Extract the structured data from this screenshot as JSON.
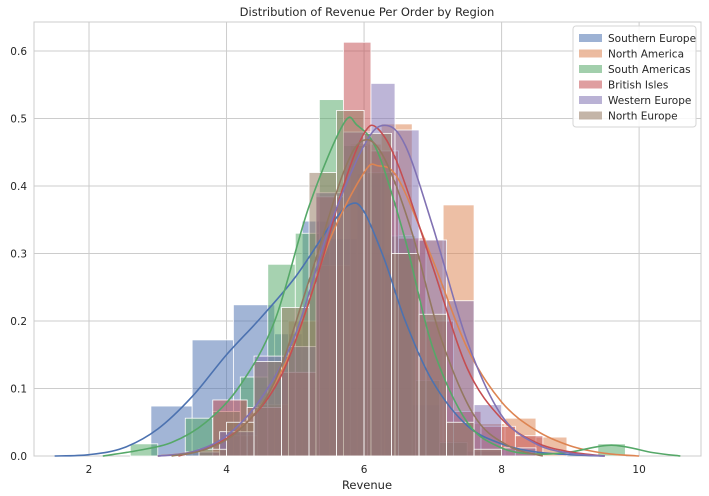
{
  "chart_data": {
    "type": "bar",
    "subtype": "overlaid-histogram-with-kde",
    "title": "Distribution of Revenue Per Order by Region",
    "xlabel": "Revenue",
    "ylabel": "",
    "xlim": [
      1.2,
      10.9
    ],
    "ylim": [
      0,
      0.643
    ],
    "xticks": [
      2,
      4,
      6,
      8,
      10
    ],
    "yticks": [
      0.0,
      0.1,
      0.2,
      0.3,
      0.4,
      0.5,
      0.6
    ],
    "grid": true,
    "legend_position": "top-right",
    "series": [
      {
        "name": "Southern Europe",
        "color": "#4c72b0",
        "bins": [
          [
            2.9,
            3.5,
            0.074
          ],
          [
            3.5,
            4.1,
            0.172
          ],
          [
            4.1,
            4.7,
            0.224
          ],
          [
            4.7,
            5.1,
            0.181
          ],
          [
            5.1,
            5.5,
            0.348
          ],
          [
            5.5,
            5.9,
            0.322
          ],
          [
            5.9,
            6.3,
            0.418
          ],
          [
            6.3,
            6.7,
            0.299
          ],
          [
            6.7,
            7.1,
            0.076
          ],
          [
            7.1,
            7.5,
            0.022
          ],
          [
            7.5,
            8.0,
            0.007
          ],
          [
            8.0,
            8.5,
            0.0
          ]
        ],
        "kde": [
          [
            1.5,
            0.0
          ],
          [
            2.0,
            0.002
          ],
          [
            2.5,
            0.012
          ],
          [
            3.0,
            0.04
          ],
          [
            3.5,
            0.088
          ],
          [
            4.0,
            0.15
          ],
          [
            4.5,
            0.205
          ],
          [
            5.0,
            0.265
          ],
          [
            5.5,
            0.34
          ],
          [
            5.8,
            0.373
          ],
          [
            6.0,
            0.362
          ],
          [
            6.3,
            0.29
          ],
          [
            6.6,
            0.2
          ],
          [
            7.0,
            0.11
          ],
          [
            7.5,
            0.045
          ],
          [
            8.0,
            0.018
          ],
          [
            8.5,
            0.006
          ],
          [
            9.0,
            0.002
          ],
          [
            9.5,
            0.0
          ]
        ]
      },
      {
        "name": "North America",
        "color": "#dd8452",
        "bins": [
          [
            3.6,
            4.0,
            0.008
          ],
          [
            4.0,
            4.45,
            0.03
          ],
          [
            4.45,
            4.9,
            0.076
          ],
          [
            4.9,
            5.35,
            0.2
          ],
          [
            5.35,
            5.8,
            0.282
          ],
          [
            5.8,
            6.25,
            0.462
          ],
          [
            6.25,
            6.7,
            0.492
          ],
          [
            6.7,
            7.15,
            0.32
          ],
          [
            7.15,
            7.6,
            0.372
          ],
          [
            7.6,
            8.05,
            0.048
          ],
          [
            8.05,
            8.5,
            0.056
          ],
          [
            8.5,
            8.95,
            0.028
          ]
        ],
        "kde": [
          [
            3.0,
            0.0
          ],
          [
            3.5,
            0.006
          ],
          [
            4.0,
            0.025
          ],
          [
            4.5,
            0.075
          ],
          [
            5.0,
            0.17
          ],
          [
            5.5,
            0.32
          ],
          [
            6.0,
            0.42
          ],
          [
            6.2,
            0.43
          ],
          [
            6.5,
            0.41
          ],
          [
            7.0,
            0.29
          ],
          [
            7.5,
            0.16
          ],
          [
            8.0,
            0.08
          ],
          [
            8.5,
            0.038
          ],
          [
            9.0,
            0.015
          ],
          [
            9.5,
            0.004
          ],
          [
            10.0,
            0.0
          ]
        ]
      },
      {
        "name": "South Americas",
        "color": "#55a868",
        "bins": [
          [
            2.6,
            3.0,
            0.018
          ],
          [
            3.0,
            3.4,
            0.0
          ],
          [
            3.4,
            3.8,
            0.056
          ],
          [
            3.8,
            4.2,
            0.066
          ],
          [
            4.2,
            4.6,
            0.117
          ],
          [
            4.6,
            5.0,
            0.284
          ],
          [
            5.0,
            5.35,
            0.33
          ],
          [
            5.35,
            5.7,
            0.528
          ],
          [
            5.7,
            6.05,
            0.46
          ],
          [
            6.05,
            6.4,
            0.42
          ],
          [
            6.4,
            6.75,
            0.326
          ],
          [
            6.75,
            7.1,
            0.112
          ],
          [
            7.1,
            7.5,
            0.02
          ],
          [
            9.4,
            9.8,
            0.018
          ]
        ],
        "kde": [
          [
            2.2,
            0.0
          ],
          [
            2.7,
            0.008
          ],
          [
            3.2,
            0.02
          ],
          [
            3.7,
            0.05
          ],
          [
            4.2,
            0.105
          ],
          [
            4.7,
            0.2
          ],
          [
            5.2,
            0.37
          ],
          [
            5.7,
            0.492
          ],
          [
            5.9,
            0.49
          ],
          [
            6.2,
            0.45
          ],
          [
            6.6,
            0.32
          ],
          [
            7.0,
            0.16
          ],
          [
            7.5,
            0.05
          ],
          [
            8.0,
            0.012
          ],
          [
            8.5,
            0.003
          ],
          [
            9.0,
            0.006
          ],
          [
            9.6,
            0.016
          ],
          [
            10.2,
            0.005
          ],
          [
            10.6,
            0.0
          ]
        ]
      },
      {
        "name": "British Isles",
        "color": "#c44e52",
        "bins": [
          [
            3.8,
            4.3,
            0.083
          ],
          [
            4.3,
            4.8,
            0.072
          ],
          [
            4.8,
            5.3,
            0.124
          ],
          [
            5.3,
            5.7,
            0.384
          ],
          [
            5.7,
            6.1,
            0.613
          ],
          [
            6.1,
            6.5,
            0.452
          ],
          [
            6.5,
            6.9,
            0.323
          ],
          [
            6.9,
            7.3,
            0.2
          ],
          [
            7.3,
            7.7,
            0.066
          ],
          [
            7.7,
            8.2,
            0.044
          ],
          [
            8.2,
            8.6,
            0.03
          ]
        ],
        "kde": [
          [
            3.3,
            0.0
          ],
          [
            3.8,
            0.015
          ],
          [
            4.3,
            0.05
          ],
          [
            4.8,
            0.12
          ],
          [
            5.3,
            0.26
          ],
          [
            5.7,
            0.4
          ],
          [
            6.0,
            0.478
          ],
          [
            6.2,
            0.485
          ],
          [
            6.5,
            0.43
          ],
          [
            7.0,
            0.28
          ],
          [
            7.5,
            0.13
          ],
          [
            8.0,
            0.055
          ],
          [
            8.5,
            0.02
          ],
          [
            9.0,
            0.006
          ],
          [
            9.5,
            0.0
          ]
        ]
      },
      {
        "name": "Western Europe",
        "color": "#8172b3",
        "bins": [
          [
            3.4,
            3.9,
            0.006
          ],
          [
            3.9,
            4.4,
            0.036
          ],
          [
            4.4,
            4.9,
            0.148
          ],
          [
            4.9,
            5.3,
            0.162
          ],
          [
            5.3,
            5.7,
            0.39
          ],
          [
            5.7,
            6.1,
            0.48
          ],
          [
            6.1,
            6.45,
            0.552
          ],
          [
            6.45,
            6.8,
            0.483
          ],
          [
            6.8,
            7.2,
            0.32
          ],
          [
            7.2,
            7.6,
            0.23
          ],
          [
            7.6,
            8.0,
            0.076
          ],
          [
            8.0,
            8.5,
            0.012
          ]
        ],
        "kde": [
          [
            3.0,
            0.0
          ],
          [
            3.5,
            0.006
          ],
          [
            4.0,
            0.03
          ],
          [
            4.5,
            0.085
          ],
          [
            5.0,
            0.18
          ],
          [
            5.5,
            0.34
          ],
          [
            6.0,
            0.46
          ],
          [
            6.3,
            0.49
          ],
          [
            6.6,
            0.46
          ],
          [
            7.0,
            0.34
          ],
          [
            7.5,
            0.17
          ],
          [
            8.0,
            0.06
          ],
          [
            8.5,
            0.018
          ],
          [
            9.0,
            0.004
          ],
          [
            9.5,
            0.0
          ]
        ]
      },
      {
        "name": "North Europe",
        "color": "#937860",
        "bins": [
          [
            3.6,
            4.0,
            0.01
          ],
          [
            4.0,
            4.4,
            0.05
          ],
          [
            4.4,
            4.8,
            0.14
          ],
          [
            4.8,
            5.2,
            0.22
          ],
          [
            5.2,
            5.6,
            0.42
          ],
          [
            5.6,
            6.0,
            0.512
          ],
          [
            6.0,
            6.4,
            0.478
          ],
          [
            6.4,
            6.8,
            0.3
          ],
          [
            6.8,
            7.2,
            0.21
          ],
          [
            7.2,
            7.6,
            0.05
          ],
          [
            7.6,
            8.0,
            0.01
          ]
        ],
        "kde": [
          [
            3.2,
            0.0
          ],
          [
            3.7,
            0.01
          ],
          [
            4.2,
            0.04
          ],
          [
            4.7,
            0.11
          ],
          [
            5.2,
            0.26
          ],
          [
            5.7,
            0.42
          ],
          [
            6.0,
            0.468
          ],
          [
            6.3,
            0.44
          ],
          [
            6.7,
            0.33
          ],
          [
            7.1,
            0.18
          ],
          [
            7.6,
            0.06
          ],
          [
            8.1,
            0.015
          ],
          [
            8.6,
            0.0
          ]
        ]
      }
    ]
  }
}
